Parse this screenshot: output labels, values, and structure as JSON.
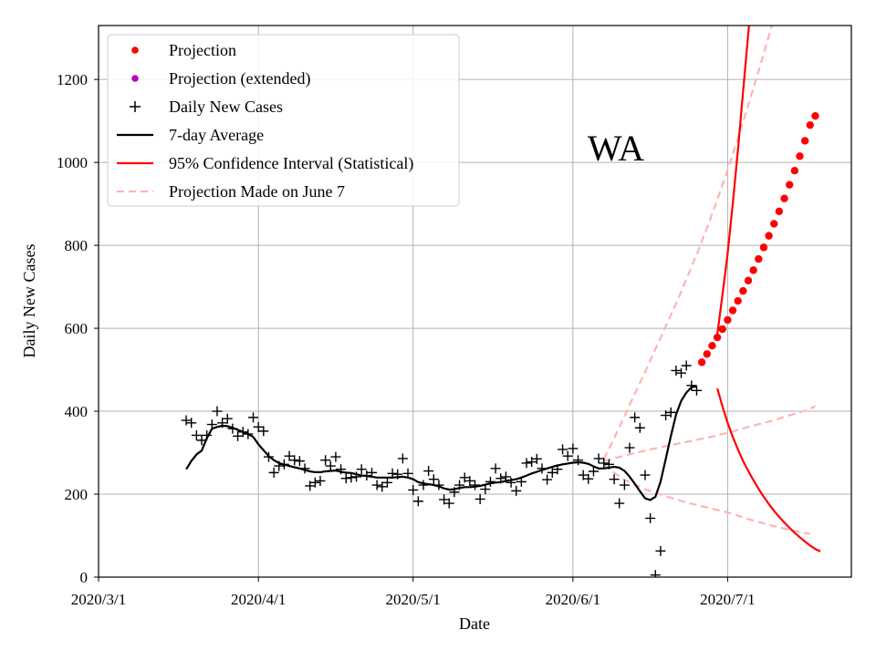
{
  "chart_data": {
    "type": "line",
    "title": "",
    "xlabel": "Date",
    "ylabel": "Daily New Cases",
    "annotation": "WA",
    "xlim": [
      0,
      146
    ],
    "ylim": [
      0,
      1330
    ],
    "grid": true,
    "legend_position": "top-left",
    "x_ticks": [
      {
        "day": 0,
        "label": "2020/3/1"
      },
      {
        "day": 31,
        "label": "2020/4/1"
      },
      {
        "day": 61,
        "label": "2020/5/1"
      },
      {
        "day": 92,
        "label": "2020/6/1"
      },
      {
        "day": 122,
        "label": "2020/7/1"
      }
    ],
    "y_ticks": [
      0,
      200,
      400,
      600,
      800,
      1000,
      1200
    ],
    "colors": {
      "projection": "#ff0000",
      "projection_extended": "#bf00bf",
      "daily": "#000000",
      "average": "#000000",
      "ci": "#ff0000",
      "june7": "#ffb3b3",
      "grid": "#b0b0b0"
    },
    "legend": [
      {
        "label": "Projection",
        "style": "dot",
        "color": "#ff0000"
      },
      {
        "label": "Projection (extended)",
        "style": "dot",
        "color": "#bf00bf"
      },
      {
        "label": "Daily New Cases",
        "style": "plus",
        "color": "#000000"
      },
      {
        "label": "7-day Average",
        "style": "line",
        "color": "#000000"
      },
      {
        "label": "95% Confidence Interval (Statistical)",
        "style": "line",
        "color": "#ff0000"
      },
      {
        "label": "Projection Made on June 7",
        "style": "dash",
        "color": "#ffb3b3"
      }
    ],
    "series": [
      {
        "name": "Daily New Cases",
        "kind": "scatter-plus",
        "points": [
          [
            17,
            378
          ],
          [
            18,
            372
          ],
          [
            19,
            342
          ],
          [
            20,
            330
          ],
          [
            21,
            342
          ],
          [
            22,
            368
          ],
          [
            23,
            400
          ],
          [
            24,
            372
          ],
          [
            25,
            382
          ],
          [
            26,
            358
          ],
          [
            27,
            340
          ],
          [
            28,
            350
          ],
          [
            29,
            345
          ],
          [
            30,
            385
          ],
          [
            31,
            362
          ],
          [
            32,
            352
          ],
          [
            33,
            290
          ],
          [
            34,
            252
          ],
          [
            35,
            268
          ],
          [
            36,
            272
          ],
          [
            37,
            292
          ],
          [
            38,
            282
          ],
          [
            39,
            280
          ],
          [
            40,
            262
          ],
          [
            41,
            220
          ],
          [
            42,
            228
          ],
          [
            43,
            232
          ],
          [
            44,
            282
          ],
          [
            45,
            268
          ],
          [
            46,
            290
          ],
          [
            47,
            260
          ],
          [
            48,
            238
          ],
          [
            49,
            240
          ],
          [
            50,
            242
          ],
          [
            51,
            260
          ],
          [
            52,
            245
          ],
          [
            53,
            252
          ],
          [
            54,
            222
          ],
          [
            55,
            218
          ],
          [
            56,
            228
          ],
          [
            57,
            250
          ],
          [
            58,
            248
          ],
          [
            59,
            286
          ],
          [
            60,
            250
          ],
          [
            61,
            210
          ],
          [
            62,
            183
          ],
          [
            63,
            222
          ],
          [
            64,
            256
          ],
          [
            65,
            236
          ],
          [
            66,
            222
          ],
          [
            67,
            187
          ],
          [
            68,
            178
          ],
          [
            69,
            205
          ],
          [
            70,
            222
          ],
          [
            71,
            240
          ],
          [
            72,
            232
          ],
          [
            73,
            222
          ],
          [
            74,
            188
          ],
          [
            75,
            212
          ],
          [
            76,
            230
          ],
          [
            77,
            262
          ],
          [
            78,
            238
          ],
          [
            79,
            242
          ],
          [
            80,
            228
          ],
          [
            81,
            208
          ],
          [
            82,
            230
          ],
          [
            83,
            275
          ],
          [
            84,
            278
          ],
          [
            85,
            285
          ],
          [
            86,
            262
          ],
          [
            87,
            235
          ],
          [
            88,
            252
          ],
          [
            89,
            260
          ],
          [
            90,
            308
          ],
          [
            91,
            292
          ],
          [
            92,
            310
          ],
          [
            93,
            282
          ],
          [
            94,
            246
          ],
          [
            95,
            237
          ],
          [
            96,
            255
          ],
          [
            97,
            286
          ],
          [
            98,
            275
          ],
          [
            99,
            272
          ],
          [
            100,
            236
          ],
          [
            101,
            178
          ],
          [
            102,
            222
          ],
          [
            103,
            312
          ],
          [
            104,
            385
          ],
          [
            105,
            360
          ],
          [
            106,
            246
          ],
          [
            107,
            142
          ],
          [
            108,
            5
          ],
          [
            109,
            63
          ],
          [
            110,
            390
          ],
          [
            111,
            397
          ],
          [
            112,
            498
          ],
          [
            113,
            492
          ],
          [
            114,
            510
          ],
          [
            115,
            462
          ],
          [
            116,
            450
          ]
        ]
      },
      {
        "name": "7-day Average",
        "kind": "line",
        "points": [
          [
            17,
            260
          ],
          [
            18,
            280
          ],
          [
            19,
            296
          ],
          [
            20,
            305
          ],
          [
            21,
            335
          ],
          [
            22,
            358
          ],
          [
            23,
            362
          ],
          [
            24,
            365
          ],
          [
            25,
            364
          ],
          [
            26,
            360
          ],
          [
            27,
            355
          ],
          [
            28,
            350
          ],
          [
            29,
            345
          ],
          [
            30,
            338
          ],
          [
            31,
            320
          ],
          [
            32,
            306
          ],
          [
            33,
            292
          ],
          [
            34,
            282
          ],
          [
            35,
            275
          ],
          [
            36,
            271
          ],
          [
            37,
            268
          ],
          [
            38,
            265
          ],
          [
            39,
            262
          ],
          [
            40,
            258
          ],
          [
            41,
            255
          ],
          [
            42,
            253
          ],
          [
            43,
            253
          ],
          [
            44,
            255
          ],
          [
            45,
            256
          ],
          [
            46,
            257
          ],
          [
            47,
            254
          ],
          [
            48,
            252
          ],
          [
            49,
            251
          ],
          [
            50,
            248
          ],
          [
            51,
            245
          ],
          [
            52,
            244
          ],
          [
            53,
            242
          ],
          [
            54,
            240
          ],
          [
            55,
            240
          ],
          [
            56,
            240
          ],
          [
            57,
            240
          ],
          [
            58,
            241
          ],
          [
            59,
            242
          ],
          [
            60,
            240
          ],
          [
            61,
            236
          ],
          [
            62,
            229
          ],
          [
            63,
            226
          ],
          [
            64,
            224
          ],
          [
            65,
            222
          ],
          [
            66,
            219
          ],
          [
            67,
            214
          ],
          [
            68,
            211
          ],
          [
            69,
            212
          ],
          [
            70,
            215
          ],
          [
            71,
            217
          ],
          [
            72,
            217
          ],
          [
            73,
            218
          ],
          [
            74,
            220
          ],
          [
            75,
            223
          ],
          [
            76,
            226
          ],
          [
            77,
            228
          ],
          [
            78,
            229
          ],
          [
            79,
            232
          ],
          [
            80,
            234
          ],
          [
            81,
            236
          ],
          [
            82,
            240
          ],
          [
            83,
            245
          ],
          [
            84,
            250
          ],
          [
            85,
            254
          ],
          [
            86,
            258
          ],
          [
            87,
            262
          ],
          [
            88,
            266
          ],
          [
            89,
            269
          ],
          [
            90,
            272
          ],
          [
            91,
            274
          ],
          [
            92,
            276
          ],
          [
            93,
            277
          ],
          [
            94,
            276
          ],
          [
            95,
            273
          ],
          [
            96,
            267
          ],
          [
            97,
            262
          ],
          [
            98,
            262
          ],
          [
            99,
            264
          ],
          [
            100,
            266
          ],
          [
            101,
            264
          ],
          [
            102,
            256
          ],
          [
            103,
            242
          ],
          [
            104,
            225
          ],
          [
            105,
            207
          ],
          [
            106,
            190
          ],
          [
            107,
            186
          ],
          [
            108,
            194
          ],
          [
            109,
            230
          ],
          [
            110,
            285
          ],
          [
            111,
            340
          ],
          [
            112,
            392
          ],
          [
            113,
            425
          ],
          [
            114,
            445
          ],
          [
            115,
            458
          ],
          [
            116,
            460
          ]
        ]
      },
      {
        "name": "Projection",
        "kind": "scatter-dot",
        "points": [
          [
            117,
            518
          ],
          [
            118,
            538
          ],
          [
            119,
            558
          ],
          [
            120,
            578
          ],
          [
            121,
            598
          ],
          [
            122,
            620
          ],
          [
            123,
            643
          ],
          [
            124,
            666
          ],
          [
            125,
            690
          ],
          [
            126,
            715
          ],
          [
            127,
            740
          ],
          [
            128,
            767
          ],
          [
            129,
            795
          ],
          [
            130,
            823
          ],
          [
            131,
            852
          ],
          [
            132,
            882
          ],
          [
            133,
            913
          ],
          [
            134,
            946
          ],
          [
            135,
            980
          ],
          [
            136,
            1015
          ],
          [
            137,
            1052
          ],
          [
            138,
            1090
          ],
          [
            139,
            1112
          ]
        ]
      },
      {
        "name": "95% Confidence Interval (Statistical) upper",
        "kind": "line",
        "points": [
          [
            120,
            585
          ],
          [
            121,
            680
          ],
          [
            122,
            780
          ],
          [
            123,
            900
          ],
          [
            124,
            1030
          ],
          [
            125,
            1170
          ],
          [
            126,
            1310
          ],
          [
            126.5,
            1380
          ]
        ]
      },
      {
        "name": "95% Confidence Interval (Statistical) lower",
        "kind": "line",
        "points": [
          [
            120,
            455
          ],
          [
            121,
            412
          ],
          [
            122,
            372
          ],
          [
            123,
            338
          ],
          [
            124,
            308
          ],
          [
            125,
            280
          ],
          [
            126,
            256
          ],
          [
            127,
            234
          ],
          [
            128,
            213
          ],
          [
            129,
            194
          ],
          [
            130,
            176
          ],
          [
            131,
            160
          ],
          [
            132,
            145
          ],
          [
            133,
            132
          ],
          [
            134,
            119
          ],
          [
            135,
            107
          ],
          [
            136,
            96
          ],
          [
            137,
            86
          ],
          [
            138,
            76
          ],
          [
            139,
            68
          ],
          [
            140,
            62
          ]
        ]
      },
      {
        "name": "Projection Made on June 7 upper",
        "kind": "dash",
        "points": [
          [
            98,
            285
          ],
          [
            100,
            335
          ],
          [
            102,
            388
          ],
          [
            104,
            442
          ],
          [
            106,
            495
          ],
          [
            108,
            550
          ],
          [
            110,
            605
          ],
          [
            112,
            660
          ],
          [
            114,
            718
          ],
          [
            116,
            778
          ],
          [
            118,
            842
          ],
          [
            120,
            910
          ],
          [
            122,
            982
          ],
          [
            124,
            1058
          ],
          [
            126,
            1138
          ],
          [
            128,
            1220
          ],
          [
            130,
            1305
          ],
          [
            132,
            1395
          ],
          [
            133,
            1440
          ]
        ]
      },
      {
        "name": "Projection Made on June 7 mid",
        "kind": "dash",
        "points": [
          [
            98,
            280
          ],
          [
            102,
            293
          ],
          [
            106,
            305
          ],
          [
            110,
            316
          ],
          [
            114,
            326
          ],
          [
            118,
            336
          ],
          [
            122,
            348
          ],
          [
            126,
            362
          ],
          [
            130,
            375
          ],
          [
            134,
            390
          ],
          [
            138,
            405
          ],
          [
            139,
            413
          ]
        ]
      },
      {
        "name": "Projection Made on June 7 lower",
        "kind": "dash",
        "points": [
          [
            98,
            272
          ],
          [
            100,
            252
          ],
          [
            102,
            235
          ],
          [
            106,
            212
          ],
          [
            110,
            195
          ],
          [
            114,
            180
          ],
          [
            118,
            168
          ],
          [
            122,
            156
          ],
          [
            126,
            140
          ],
          [
            130,
            126
          ],
          [
            134,
            114
          ],
          [
            138,
            104
          ]
        ]
      }
    ]
  }
}
